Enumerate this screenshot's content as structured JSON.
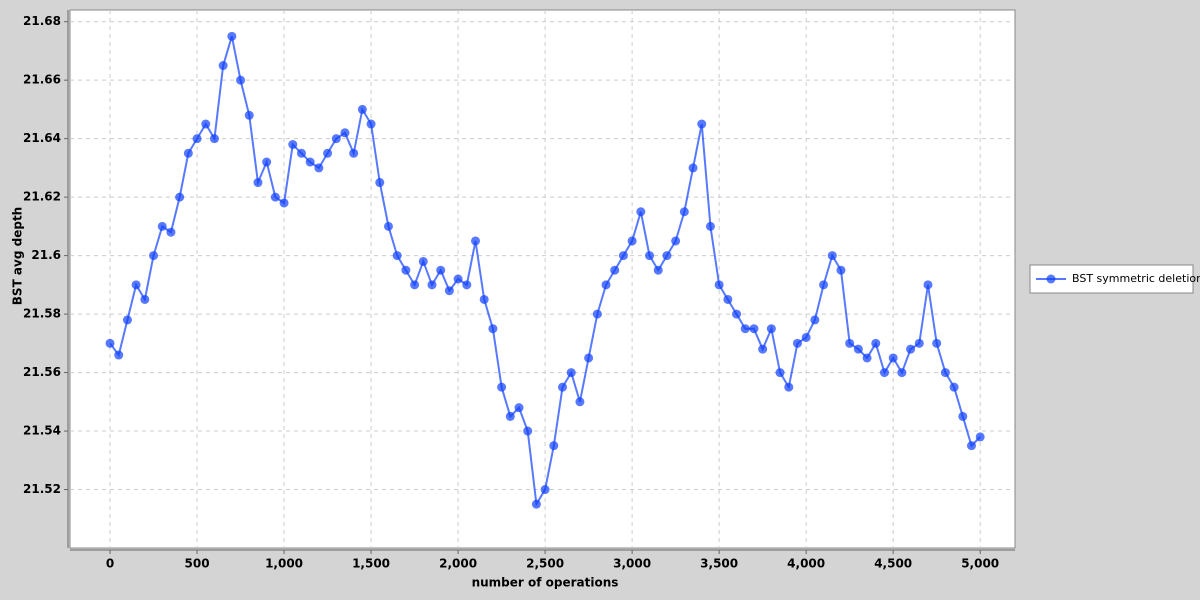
{
  "chart_data": {
    "type": "line",
    "x_label": "number of operations",
    "y_label": "BST avg depth",
    "x": [
      0,
      50,
      100,
      150,
      200,
      250,
      300,
      350,
      400,
      450,
      500,
      550,
      600,
      650,
      700,
      750,
      800,
      850,
      900,
      950,
      1000,
      1050,
      1100,
      1150,
      1200,
      1250,
      1300,
      1350,
      1400,
      1450,
      1500,
      1550,
      1600,
      1650,
      1700,
      1750,
      1800,
      1850,
      1900,
      1950,
      2000,
      2050,
      2100,
      2150,
      2200,
      2250,
      2300,
      2350,
      2400,
      2450,
      2500,
      2550,
      2600,
      2650,
      2700,
      2750,
      2800,
      2850,
      2900,
      2950,
      3000,
      3050,
      3100,
      3150,
      3200,
      3250,
      3300,
      3350,
      3400,
      3450,
      3500,
      3550,
      3600,
      3650,
      3700,
      3750,
      3800,
      3850,
      3900,
      3950,
      4000,
      4050,
      4100,
      4150,
      4200,
      4250,
      4300,
      4350,
      4400,
      4450,
      4500,
      4550,
      4600,
      4650,
      4700,
      4750,
      4800,
      4850,
      4900,
      4950,
      5000
    ],
    "series": [
      {
        "name": "BST symmetric deletion",
        "color": "#1040ff",
        "values": [
          21.57,
          21.566,
          21.578,
          21.59,
          21.585,
          21.6,
          21.61,
          21.608,
          21.62,
          21.635,
          21.64,
          21.645,
          21.64,
          21.665,
          21.675,
          21.66,
          21.648,
          21.625,
          21.632,
          21.62,
          21.618,
          21.638,
          21.635,
          21.632,
          21.63,
          21.635,
          21.64,
          21.642,
          21.635,
          21.65,
          21.645,
          21.625,
          21.61,
          21.6,
          21.595,
          21.59,
          21.598,
          21.59,
          21.595,
          21.588,
          21.592,
          21.59,
          21.605,
          21.585,
          21.575,
          21.555,
          21.545,
          21.548,
          21.54,
          21.515,
          21.52,
          21.535,
          21.555,
          21.56,
          21.55,
          21.565,
          21.58,
          21.59,
          21.595,
          21.6,
          21.605,
          21.615,
          21.6,
          21.595,
          21.6,
          21.605,
          21.615,
          21.63,
          21.645,
          21.61,
          21.59,
          21.585,
          21.58,
          21.575,
          21.575,
          21.568,
          21.575,
          21.56,
          21.555,
          21.57,
          21.572,
          21.578,
          21.59,
          21.6,
          21.595,
          21.57,
          21.568,
          21.565,
          21.57,
          21.56,
          21.565,
          21.56,
          21.568,
          21.57,
          21.59,
          21.57,
          21.56,
          21.555,
          21.545,
          21.535,
          21.538
        ]
      }
    ],
    "xlim": [
      -230,
      5200
    ],
    "xticks": [
      0,
      500,
      {
        "value": 1000,
        "label": "1,000"
      },
      {
        "value": 1500,
        "label": "1,500"
      },
      {
        "value": 2000,
        "label": "2,000"
      },
      {
        "value": 2500,
        "label": "2,500"
      },
      {
        "value": 3000,
        "label": "3,000"
      },
      {
        "value": 3500,
        "label": "3,500"
      },
      {
        "value": 4000,
        "label": "4,000"
      },
      {
        "value": 4500,
        "label": "4,500"
      },
      {
        "value": 5000,
        "label": "5,000"
      }
    ],
    "ylim": [
      21.5,
      21.684
    ],
    "yticks": [
      21.52,
      21.54,
      21.56,
      21.58,
      21.6,
      21.62,
      21.64,
      21.66,
      21.68
    ],
    "grid": true,
    "legend": "right"
  }
}
